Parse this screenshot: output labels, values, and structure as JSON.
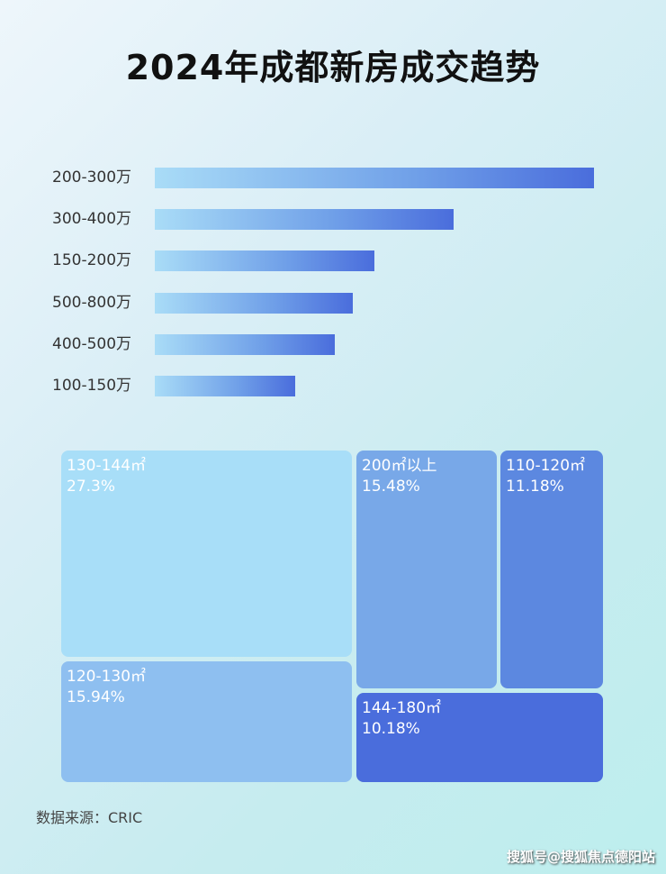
{
  "chart_data": [
    {
      "type": "bar",
      "orientation": "horizontal",
      "title": "2024年成都新房成交趋势",
      "categories": [
        "200-300万",
        "300-400万",
        "150-200万",
        "500-800万",
        "400-500万",
        "100-150万"
      ],
      "values": [
        100,
        68,
        50,
        45,
        41,
        32
      ],
      "value_note_unit": "relative length, max = 100",
      "axis_shown": false
    },
    {
      "type": "treemap",
      "labels": [
        "130-144㎡",
        "120-130㎡",
        "200㎡以上",
        "110-120㎡",
        "144-180㎡"
      ],
      "values": [
        "27.3%",
        "15.94%",
        "15.48%",
        "11.18%",
        "10.18%"
      ],
      "colors": [
        "#a8def8",
        "#8ebff0",
        "#78a8e8",
        "#5c88e0",
        "#4a6ddc"
      ]
    }
  ],
  "source": "数据来源：CRIC",
  "watermark": "搜狐号@搜狐焦点德阳站"
}
